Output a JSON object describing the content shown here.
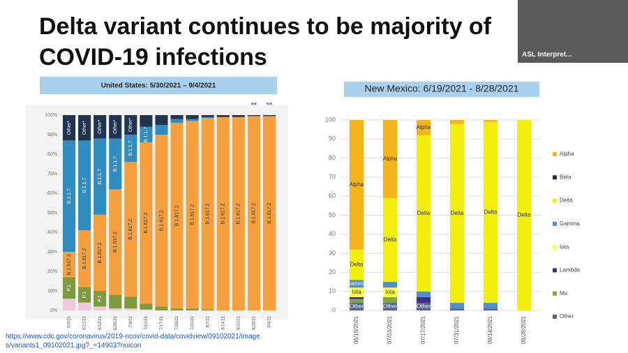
{
  "slide_title": "Delta variant continues to be majority of COVID-19 infections",
  "interpreter_label": "ASL Interpret...",
  "source_url": "https://www.cdc.gov/coronavirus/2019-ncov/covid-data/covidview/09102021/images/variants1_09102021.jpg?_=14903?noicon",
  "chart_data": [
    {
      "type": "bar",
      "stacked": true,
      "title": "United States: 5/30/2021 – 9/4/2021",
      "categories": [
        "6/5/21",
        "6/12/21",
        "6/19/21",
        "6/26/21",
        "7/3/21",
        "7/10/21",
        "7/17/21",
        "7/24/21",
        "7/31/21",
        "8/7/21",
        "8/14/21",
        "8/21/21",
        "8/28/21",
        "9/4/21"
      ],
      "series": [
        {
          "color": "#f2c9dc",
          "values": [
            6,
            4,
            2,
            1,
            1,
            0.5,
            0,
            0,
            0,
            0,
            0,
            0,
            0,
            0
          ]
        },
        {
          "name": "P.1",
          "color": "#7d9a3c",
          "values": [
            11,
            8,
            8,
            7,
            6,
            3,
            2,
            1,
            1,
            0.5,
            0,
            0,
            0,
            0
          ]
        },
        {
          "name": "B.1.617.2",
          "color": "#f5a03c",
          "values": [
            13,
            29,
            39,
            54,
            69,
            82.5,
            88,
            95,
            96,
            98,
            99,
            99,
            99.5,
            99.5
          ]
        },
        {
          "name": "B.1.1.7",
          "color": "#2f8dbf",
          "values": [
            57,
            46,
            39,
            26,
            14,
            8,
            5,
            2,
            1,
            0.5,
            0,
            0,
            0,
            0
          ]
        },
        {
          "name": "Other*",
          "color": "#1f3450",
          "values": [
            13,
            13,
            12,
            12,
            10,
            6,
            5,
            2,
            2,
            1,
            1,
            1,
            0.5,
            0.5
          ]
        }
      ],
      "annotations": [
        "**",
        "**"
      ],
      "ylim": [
        0,
        100
      ],
      "yticks": [
        {
          "value": 0,
          "label": "0%"
        },
        {
          "value": 10,
          "label": "10%"
        },
        {
          "value": 20,
          "label": "20%"
        },
        {
          "value": 30,
          "label": "30%"
        },
        {
          "value": 40,
          "label": "40%"
        },
        {
          "value": 50,
          "label": "50%"
        },
        {
          "value": 60,
          "label": "60%"
        },
        {
          "value": 70,
          "label": "70%"
        },
        {
          "value": 80,
          "label": "80%"
        },
        {
          "value": 90,
          "label": "90%"
        },
        {
          "value": 100,
          "label": "100%"
        }
      ]
    },
    {
      "type": "bar",
      "stacked": true,
      "title": "New Mexico: 6/19/2021 - 8/28/2021",
      "categories": [
        "06/19/2021",
        "07/03/2021",
        "07/17/2021",
        "07/31/2021",
        "08/14/2021",
        "08/28/2021"
      ],
      "series": [
        {
          "name": "Alpha",
          "color": "#f4b41a",
          "values": [
            68,
            41,
            8,
            2,
            1,
            0
          ]
        },
        {
          "name": "Beta",
          "color": "#1f2a5a",
          "values": [
            0,
            0,
            0,
            0,
            0,
            0
          ]
        },
        {
          "name": "Delta",
          "color": "#f3ef0c",
          "values": [
            16,
            44,
            82,
            94,
            95,
            100
          ]
        },
        {
          "name": "Gamma",
          "color": "#4f8fd0",
          "values": [
            4,
            3,
            3,
            3,
            3,
            0
          ]
        },
        {
          "name": "Iota",
          "color": "#ffff3a",
          "values": [
            5,
            5,
            0,
            0,
            0,
            0
          ]
        },
        {
          "name": "Lambda",
          "color": "#3d2f85",
          "values": [
            1,
            0,
            3,
            0,
            0,
            0
          ]
        },
        {
          "name": "Mu",
          "color": "#80a83e",
          "values": [
            2,
            3,
            0,
            0,
            0,
            0
          ]
        },
        {
          "name": "Other",
          "color": "#56618f",
          "values": [
            4,
            4,
            4,
            1,
            1,
            0
          ]
        }
      ],
      "legend": "right",
      "ylim": [
        0,
        100
      ],
      "yticks": [
        0,
        10,
        20,
        30,
        40,
        50,
        60,
        70,
        80,
        90,
        100
      ]
    }
  ]
}
